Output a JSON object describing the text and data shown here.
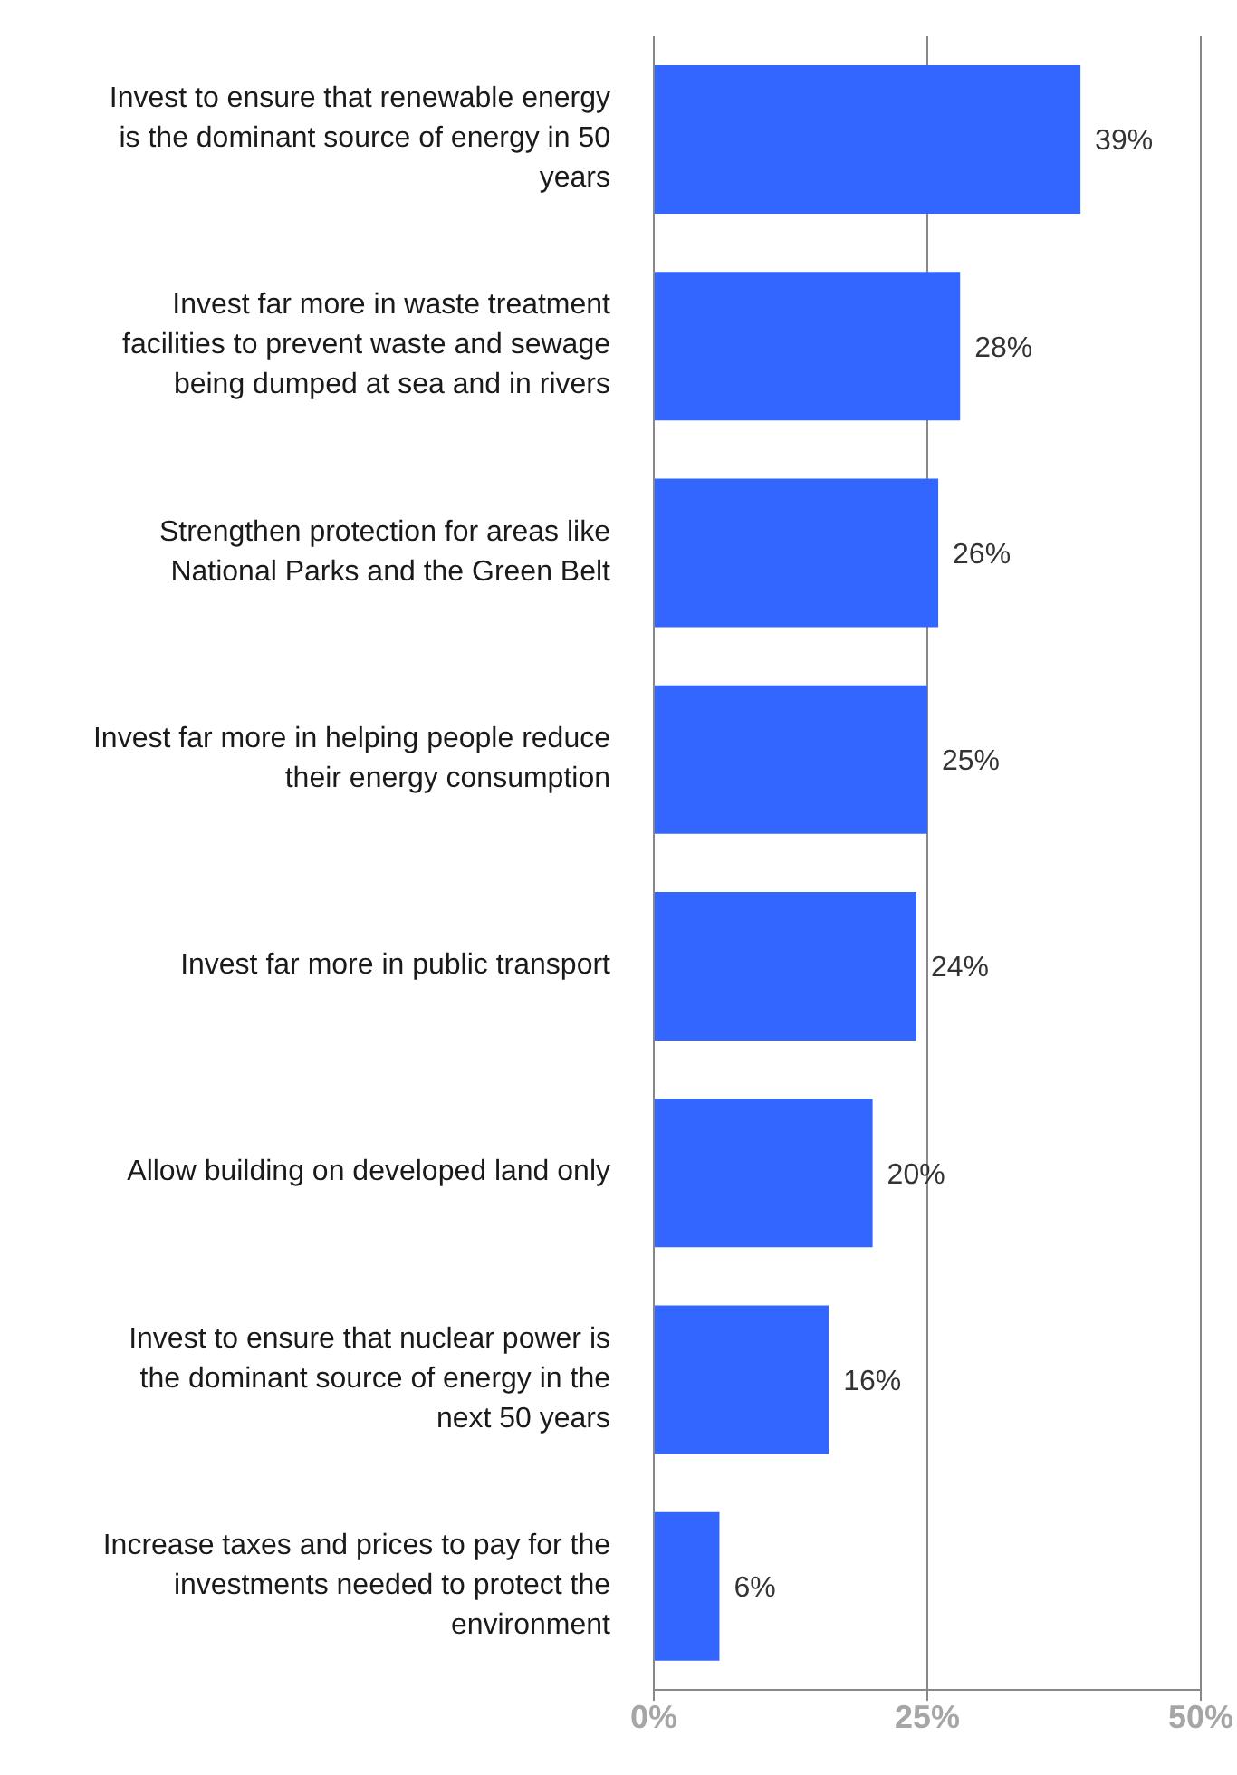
{
  "chart_data": {
    "type": "bar",
    "orientation": "horizontal",
    "categories": [
      "Invest to ensure that renewable energy is the dominant source of energy in 50 years",
      "Invest far more in waste treatment facilities to prevent waste and sewage being dumped at sea and in rivers",
      "Strengthen protection for areas like National Parks and the Green Belt",
      "Invest far more in helping people reduce their energy consumption",
      "Invest far more in public transport",
      "Allow building on developed land only",
      "Invest to ensure that nuclear power is the dominant source of energy in the next 50 years",
      "Increase taxes and prices to pay for the investments needed to protect the environment"
    ],
    "values": [
      39,
      28,
      26,
      25,
      24,
      20,
      16,
      6
    ],
    "value_labels": [
      "39%",
      "28%",
      "26%",
      "25%",
      "24%",
      "20%",
      "16%",
      "6%"
    ],
    "color": "#3366ff",
    "xlim": [
      0,
      50
    ],
    "xticks": [
      {
        "value": 0,
        "label": "0%"
      },
      {
        "value": 25,
        "label": "25%"
      },
      {
        "value": 50,
        "label": "50%"
      }
    ],
    "grid": "x"
  }
}
